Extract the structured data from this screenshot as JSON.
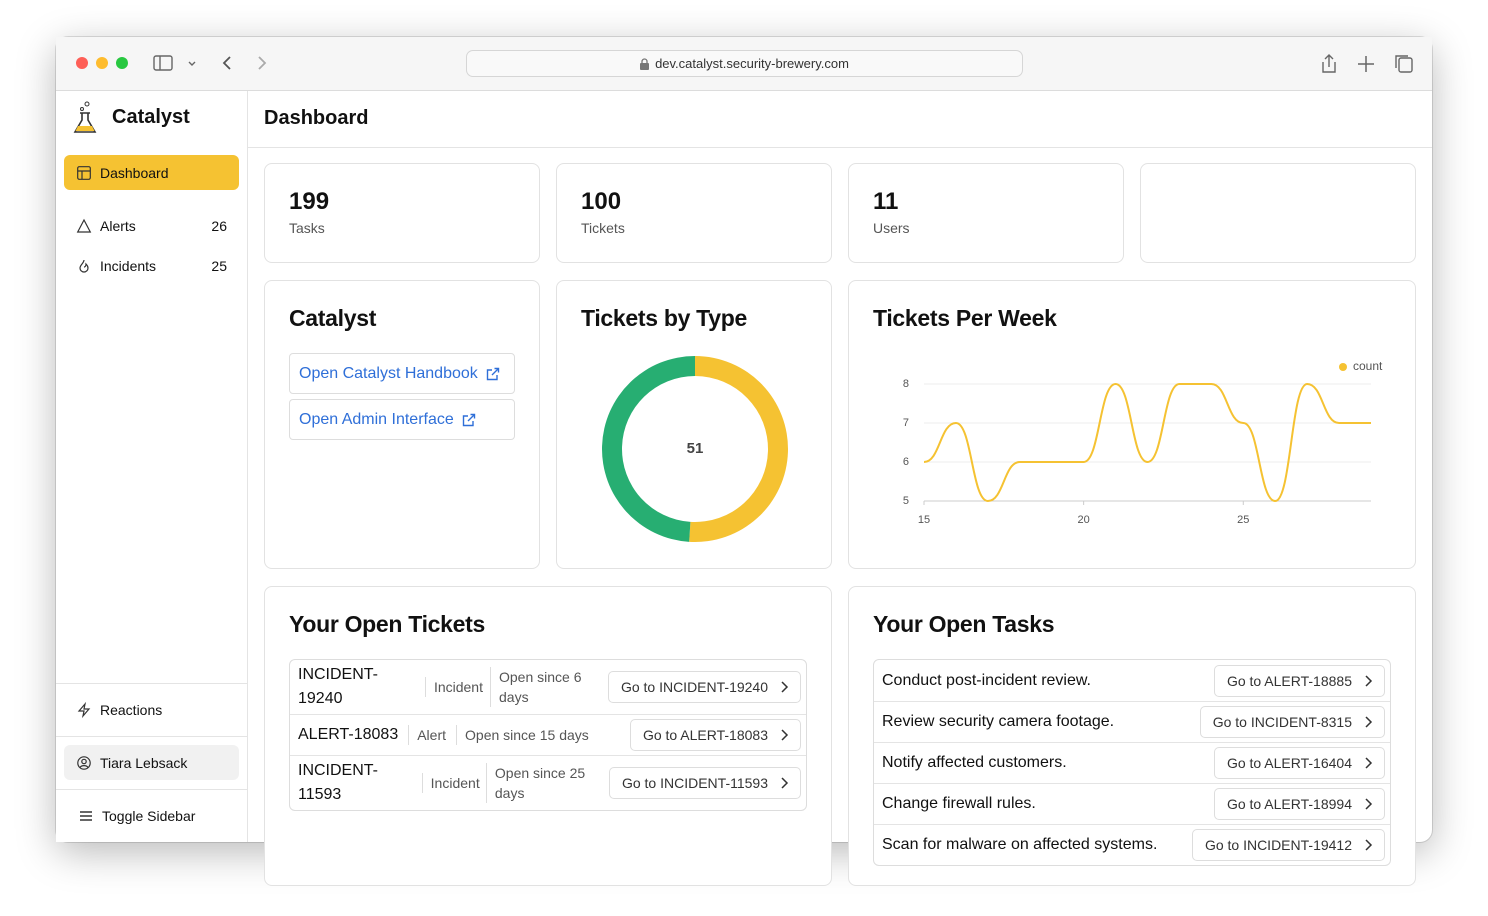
{
  "browser": {
    "url": "dev.catalyst.security-brewery.com"
  },
  "sidebar": {
    "brand": "Catalyst",
    "nav": [
      {
        "label": "Dashboard"
      },
      {
        "label": "Alerts",
        "count": 26
      },
      {
        "label": "Incidents",
        "count": 25
      }
    ],
    "reactions": "Reactions",
    "user": "Tiara Lebsack",
    "toggle": "Toggle Sidebar"
  },
  "header": {
    "title": "Dashboard"
  },
  "stats": [
    {
      "value": 199,
      "label": "Tasks"
    },
    {
      "value": 100,
      "label": "Tickets"
    },
    {
      "value": 11,
      "label": "Users"
    }
  ],
  "links_card": {
    "title": "Catalyst",
    "links": [
      "Open Catalyst Handbook",
      "Open Admin Interface"
    ]
  },
  "chart_data": [
    {
      "type": "pie",
      "title": "Tickets by Type",
      "donut": true,
      "values": [
        51,
        49
      ],
      "colors": [
        "#f5c232",
        "#27ae72"
      ]
    },
    {
      "type": "line",
      "title": "Tickets Per Week",
      "x": [
        15,
        16,
        17,
        18,
        19,
        20,
        21,
        22,
        23,
        24,
        25,
        26,
        27,
        28,
        29
      ],
      "series": [
        {
          "name": "count",
          "color": "#f5c232",
          "values": [
            6,
            7,
            5,
            6,
            6,
            6,
            8,
            6,
            8,
            8,
            7,
            5,
            8,
            7,
            7
          ]
        }
      ],
      "xlim": [
        15,
        29
      ],
      "xticks": [
        15,
        20,
        25
      ],
      "ylim": [
        5,
        8
      ],
      "yticks": [
        5,
        6,
        7,
        8
      ],
      "grid": true,
      "legend": "top-right"
    }
  ],
  "open_tickets": {
    "title": "Your Open Tickets",
    "rows": [
      {
        "id": "INCIDENT-19240",
        "type": "Incident",
        "open": "Open since 6 days",
        "action": "Go to INCIDENT-19240"
      },
      {
        "id": "ALERT-18083",
        "type": "Alert",
        "open": "Open since 15 days",
        "action": "Go to ALERT-18083"
      },
      {
        "id": "INCIDENT-11593",
        "type": "Incident",
        "open": "Open since 25 days",
        "action": "Go to INCIDENT-11593"
      }
    ]
  },
  "open_tasks": {
    "title": "Your Open Tasks",
    "rows": [
      {
        "task": "Conduct post-incident review.",
        "action": "Go to ALERT-18885"
      },
      {
        "task": "Review security camera footage.",
        "action": "Go to INCIDENT-8315"
      },
      {
        "task": "Notify affected customers.",
        "action": "Go to ALERT-16404"
      },
      {
        "task": "Change firewall rules.",
        "action": "Go to ALERT-18994"
      },
      {
        "task": "Scan for malware on affected systems.",
        "action": "Go to INCIDENT-19412"
      }
    ]
  }
}
